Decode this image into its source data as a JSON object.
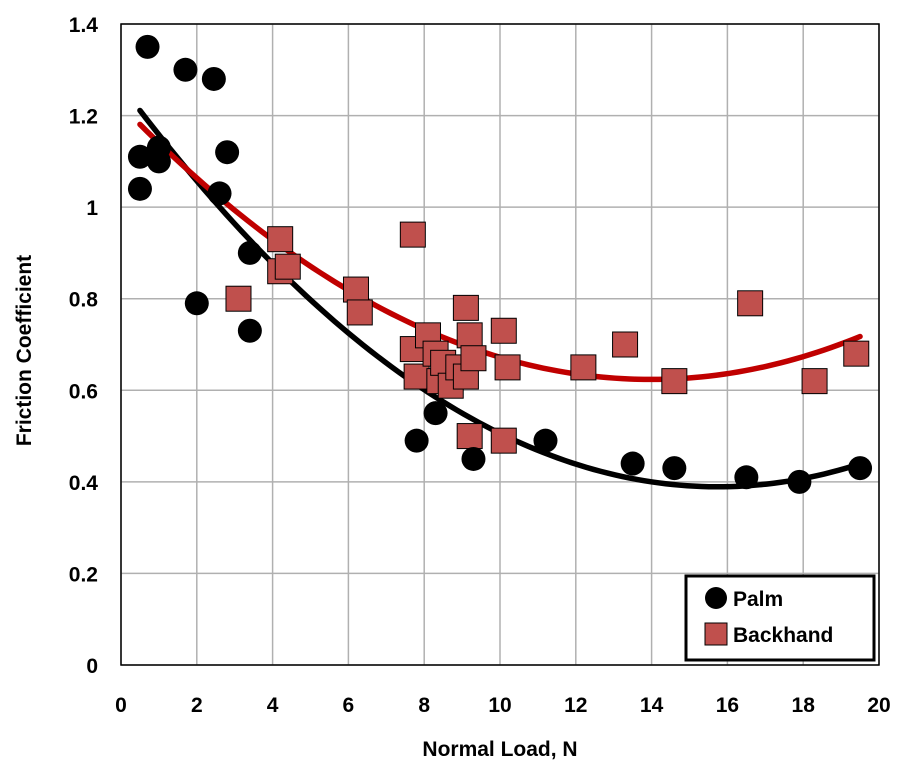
{
  "chart_data": {
    "type": "scatter",
    "title": "",
    "xlabel": "Normal Load, N",
    "ylabel": "Friction Coefficient",
    "xlim": [
      0,
      20
    ],
    "ylim": [
      0,
      1.4
    ],
    "x_ticks": [
      "0",
      "2",
      "4",
      "6",
      "8",
      "10",
      "12",
      "14",
      "16",
      "18",
      "20"
    ],
    "y_ticks": [
      "0",
      "0.2",
      "0.4",
      "0.6",
      "0.8",
      "1",
      "1.2",
      "1.4"
    ],
    "grid": true,
    "legend_position": "bottom-right",
    "series": [
      {
        "name": "Palm",
        "marker": "circle",
        "color": "#000000",
        "points": [
          [
            0.5,
            1.04
          ],
          [
            0.5,
            1.11
          ],
          [
            0.7,
            1.35
          ],
          [
            1.0,
            1.13
          ],
          [
            1.0,
            1.1
          ],
          [
            1.7,
            1.3
          ],
          [
            2.0,
            0.79
          ],
          [
            2.45,
            1.28
          ],
          [
            2.6,
            1.03
          ],
          [
            2.8,
            1.12
          ],
          [
            3.4,
            0.9
          ],
          [
            3.4,
            0.73
          ],
          [
            7.8,
            0.49
          ],
          [
            8.3,
            0.55
          ],
          [
            9.3,
            0.45
          ],
          [
            11.2,
            0.49
          ],
          [
            13.5,
            0.44
          ],
          [
            14.6,
            0.43
          ],
          [
            16.5,
            0.41
          ],
          [
            17.9,
            0.4
          ],
          [
            19.5,
            0.43
          ]
        ]
      },
      {
        "name": "Backhand",
        "marker": "square",
        "color": "#c0504d",
        "points": [
          [
            3.1,
            0.8
          ],
          [
            4.2,
            0.93
          ],
          [
            4.2,
            0.86
          ],
          [
            4.4,
            0.87
          ],
          [
            6.2,
            0.82
          ],
          [
            6.3,
            0.77
          ],
          [
            7.7,
            0.94
          ],
          [
            7.7,
            0.69
          ],
          [
            7.8,
            0.63
          ],
          [
            8.1,
            0.72
          ],
          [
            8.3,
            0.68
          ],
          [
            8.4,
            0.62
          ],
          [
            8.5,
            0.66
          ],
          [
            8.7,
            0.61
          ],
          [
            8.9,
            0.65
          ],
          [
            9.1,
            0.78
          ],
          [
            9.1,
            0.63
          ],
          [
            9.2,
            0.72
          ],
          [
            9.3,
            0.67
          ],
          [
            9.2,
            0.5
          ],
          [
            10.1,
            0.73
          ],
          [
            10.1,
            0.49
          ],
          [
            10.2,
            0.65
          ],
          [
            12.2,
            0.65
          ],
          [
            13.3,
            0.7
          ],
          [
            14.6,
            0.62
          ],
          [
            16.6,
            0.79
          ],
          [
            18.3,
            0.62
          ],
          [
            19.4,
            0.68
          ]
        ]
      }
    ],
    "trendlines": [
      {
        "series": "Palm",
        "type": "polynomial",
        "color": "#000000",
        "x_range": [
          0.5,
          19.5
        ],
        "points": [
          [
            0.5,
            1.21
          ],
          [
            5.0,
            0.8
          ],
          [
            10.0,
            0.505
          ],
          [
            15.0,
            0.39
          ],
          [
            19.5,
            0.44
          ]
        ]
      },
      {
        "series": "Backhand",
        "type": "polynomial",
        "color": "#c00000",
        "x_range": [
          0.5,
          19.5
        ],
        "points": [
          [
            0.5,
            1.18
          ],
          [
            5.0,
            0.87
          ],
          [
            10.0,
            0.68
          ],
          [
            14.0,
            0.615
          ],
          [
            19.5,
            0.72
          ]
        ]
      }
    ]
  }
}
